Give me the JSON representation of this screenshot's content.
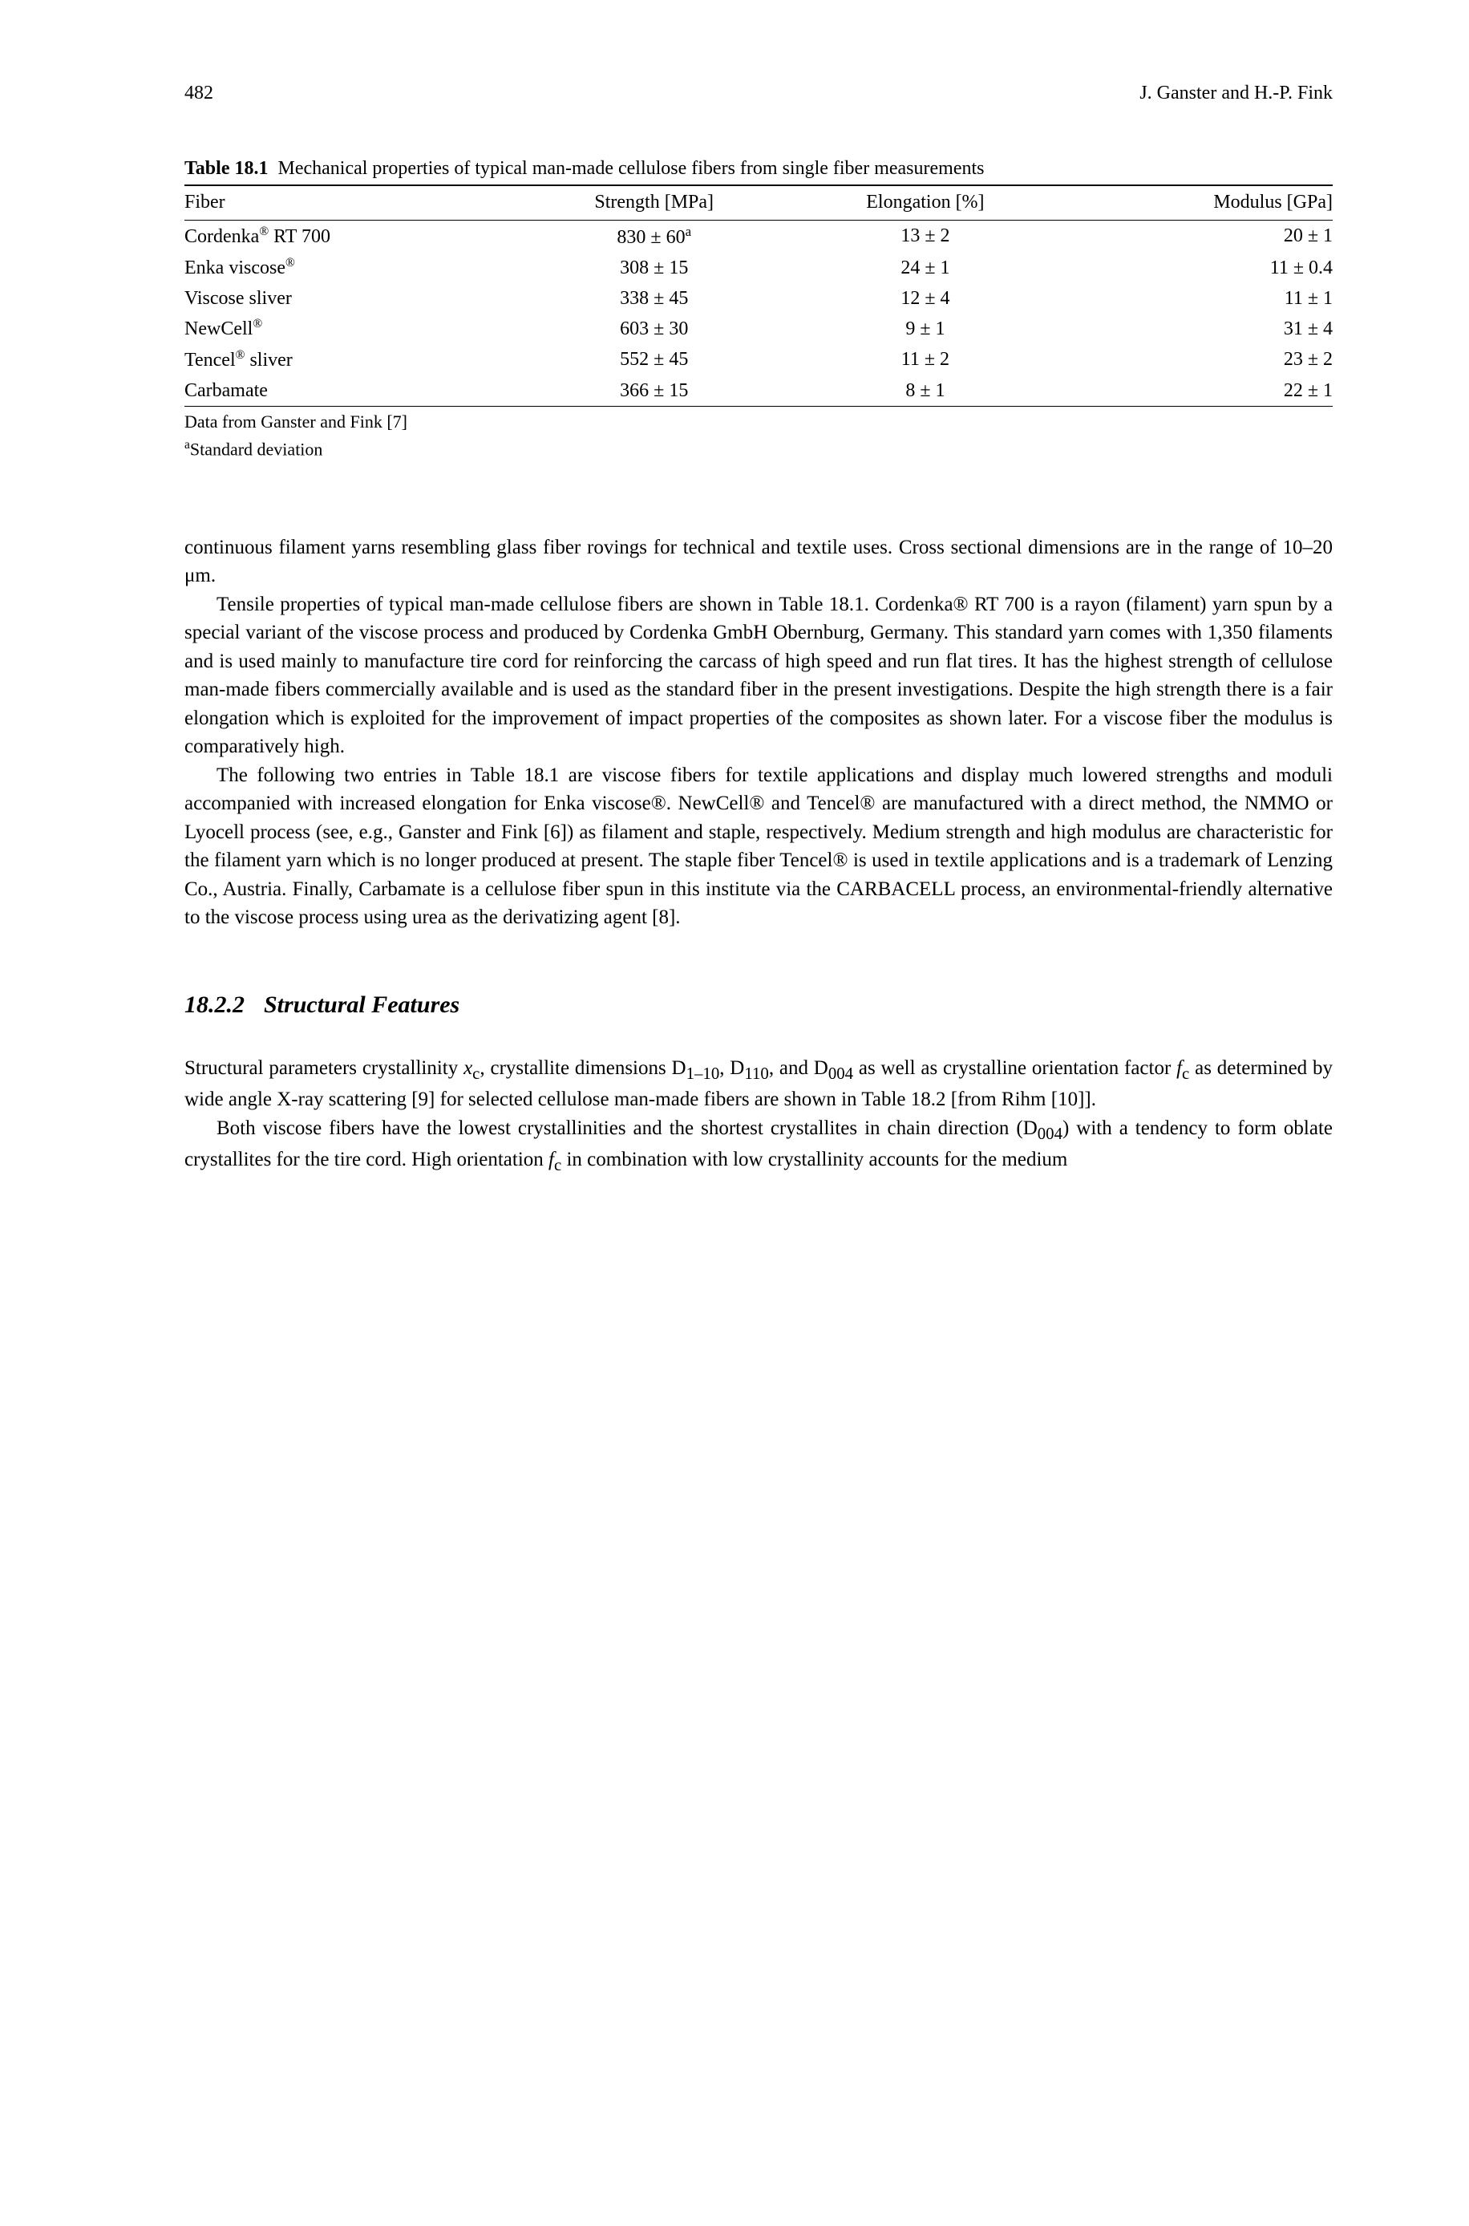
{
  "header": {
    "page_number": "482",
    "authors": "J. Ganster and H.-P. Fink"
  },
  "table": {
    "caption_label": "Table 18.1",
    "caption_text": "Mechanical properties of typical man-made cellulose fibers from single fiber measurements",
    "columns": [
      "Fiber",
      "Strength [MPa]",
      "Elongation [%]",
      "Modulus [GPa]"
    ],
    "rows": [
      {
        "fiber": "Cordenka® RT 700",
        "strength": "830 ± 60",
        "strength_sup": "a",
        "elongation": "13 ± 2",
        "modulus": "20 ± 1"
      },
      {
        "fiber": "Enka viscose®",
        "strength": "308 ± 15",
        "elongation": "24 ± 1",
        "modulus": "11 ± 0.4"
      },
      {
        "fiber": "Viscose sliver",
        "strength": "338 ± 45",
        "elongation": "12 ± 4",
        "modulus": "11 ± 1"
      },
      {
        "fiber": "NewCell®",
        "strength": "603 ± 30",
        "elongation": "9 ± 1",
        "modulus": "31 ± 4"
      },
      {
        "fiber": "Tencel® sliver",
        "strength": "552 ± 45",
        "elongation": "11 ± 2",
        "modulus": "23 ± 2"
      },
      {
        "fiber": "Carbamate",
        "strength": "366 ± 15",
        "elongation": "8 ± 1",
        "modulus": "22 ± 1"
      }
    ],
    "footnote1": "Data from Ganster and Fink [7]",
    "footnote2_sup": "a",
    "footnote2": "Standard deviation"
  },
  "paragraphs": {
    "p1": "continuous filament yarns resembling glass fiber rovings for technical and textile uses. Cross sectional dimensions are in the range of 10–20 μm.",
    "p2": "Tensile properties of typical man-made cellulose fibers are shown in Table 18.1. Cordenka® RT 700 is a rayon (filament) yarn spun by a special variant of the viscose process and produced by Cordenka GmbH Obernburg, Germany. This standard yarn comes with 1,350 filaments and is used mainly to manufacture tire cord for reinforcing the carcass of high speed and run flat tires. It has the highest strength of cellulose man-made fibers commercially available and is used as the standard fiber in the present investigations. Despite the high strength there is a fair elongation which is exploited for the improvement of impact properties of the composites as shown later. For a viscose fiber the modulus is comparatively high.",
    "p3": "The following two entries in Table 18.1 are viscose fibers for textile applications and display much lowered strengths and moduli accompanied with increased elongation for Enka viscose®. NewCell® and Tencel® are manufactured with a direct method, the NMMO or Lyocell process (see, e.g., Ganster and Fink [6]) as filament and staple, respectively. Medium strength and high modulus are characteristic for the filament yarn which is no longer produced at present. The staple fiber Tencel® is used in textile applications and is a trademark of Lenzing Co., Austria. Finally, Carbamate is a cellulose fiber spun in this institute via the CARBACELL process, an environmental-friendly alternative to the viscose process using urea as the derivatizing agent [8]."
  },
  "section": {
    "number": "18.2.2",
    "title": "Structural Features"
  },
  "paragraphs2": {
    "p4a": "Structural parameters crystallinity ",
    "p4b": ", crystallite dimensions D",
    "p4c": ", D",
    "p4d": ", and D",
    "p4e": " as well as crystalline orientation factor ",
    "p4f": " as determined by wide angle X-ray scattering [9] for selected cellulose man-made fibers are shown in Table 18.2 [from Rihm [10]].",
    "p5a": "Both viscose fibers have the lowest crystallinities and the shortest crystallites in chain direction (D",
    "p5b": ") with a tendency to form oblate crystallites for the tire cord. High orientation ",
    "p5c": " in combination with low crystallinity accounts for the medium"
  },
  "symbols": {
    "xc": "x",
    "xc_sub": "c",
    "d1_sub": "1–10",
    "d2_sub": "110",
    "d3_sub": "004",
    "fc": "f",
    "fc_sub": "c",
    "d004_sub": "004"
  }
}
